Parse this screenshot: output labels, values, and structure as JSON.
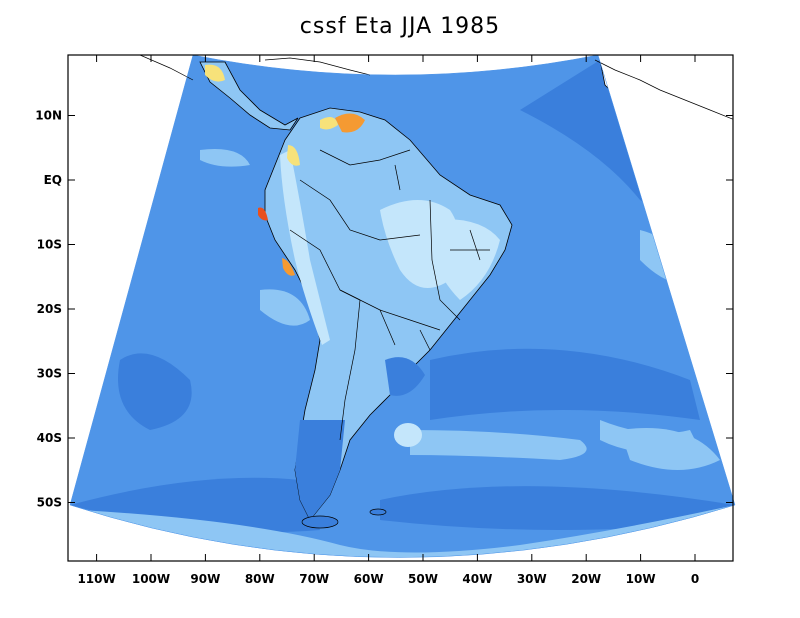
{
  "title": "cssf Eta JJA 1985",
  "map": {
    "lat_ticks": [
      {
        "label": "10N",
        "lat": 10
      },
      {
        "label": "EQ",
        "lat": 0
      },
      {
        "label": "10S",
        "lat": -10
      },
      {
        "label": "20S",
        "lat": -20
      },
      {
        "label": "30S",
        "lat": -30
      },
      {
        "label": "40S",
        "lat": -40
      },
      {
        "label": "50S",
        "lat": -50
      }
    ],
    "lon_ticks": [
      {
        "label": "110W",
        "lon": -110
      },
      {
        "label": "100W",
        "lon": -100
      },
      {
        "label": "90W",
        "lon": -90
      },
      {
        "label": "80W",
        "lon": -80
      },
      {
        "label": "70W",
        "lon": -70
      },
      {
        "label": "60W",
        "lon": -60
      },
      {
        "label": "50W",
        "lon": -50
      },
      {
        "label": "40W",
        "lon": -40
      },
      {
        "label": "30W",
        "lon": -30
      },
      {
        "label": "20W",
        "lon": -20
      },
      {
        "label": "10W",
        "lon": -10
      },
      {
        "label": "0",
        "lon": 0
      }
    ],
    "colors": {
      "ocean_base": "#4f95e8",
      "deep": "#3a7fdc",
      "light": "#8ec6f4",
      "pale": "#c4e6fb",
      "yellow": "#f7e27a",
      "orange": "#f59a32",
      "red": "#e8501e",
      "coast": "#000000"
    }
  }
}
